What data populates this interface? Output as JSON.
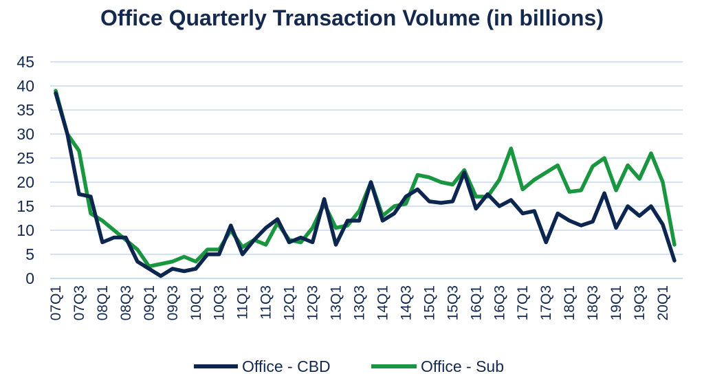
{
  "chart_data": {
    "type": "line",
    "title": "Office Quarterly Transaction Volume (in billions)",
    "xlabel": "",
    "ylabel": "",
    "ylim": [
      0,
      45
    ],
    "yticks": [
      0,
      5,
      10,
      15,
      20,
      25,
      30,
      35,
      40,
      45
    ],
    "grid": true,
    "legend_position": "bottom",
    "x": [
      "07Q1",
      "07Q2",
      "07Q3",
      "07Q4",
      "08Q1",
      "08Q2",
      "08Q3",
      "08Q4",
      "09Q1",
      "09Q2",
      "09Q3",
      "09Q4",
      "10Q1",
      "10Q2",
      "10Q3",
      "10Q4",
      "11Q1",
      "11Q2",
      "11Q3",
      "11Q4",
      "12Q1",
      "12Q2",
      "12Q3",
      "12Q4",
      "13Q1",
      "13Q2",
      "13Q3",
      "13Q4",
      "14Q1",
      "14Q2",
      "14Q3",
      "14Q4",
      "15Q1",
      "15Q2",
      "15Q3",
      "15Q4",
      "16Q1",
      "16Q2",
      "16Q3",
      "16Q4",
      "17Q1",
      "17Q2",
      "17Q3",
      "17Q4",
      "18Q1",
      "18Q2",
      "18Q3",
      "18Q4",
      "19Q1",
      "19Q2",
      "19Q3",
      "19Q4",
      "20Q1",
      "20Q2"
    ],
    "x_tick_labels": [
      "07Q1",
      "07Q3",
      "08Q1",
      "08Q3",
      "09Q1",
      "09Q3",
      "10Q1",
      "10Q3",
      "11Q1",
      "11Q3",
      "12Q1",
      "12Q3",
      "13Q1",
      "13Q3",
      "14Q1",
      "14Q3",
      "15Q1",
      "15Q3",
      "16Q1",
      "16Q3",
      "17Q1",
      "17Q3",
      "18Q1",
      "18Q3",
      "19Q1",
      "19Q3",
      "20Q1"
    ],
    "series": [
      {
        "name": "Office - CBD",
        "color": "#0d2650",
        "values": [
          38.5,
          30.0,
          17.5,
          17.0,
          7.5,
          8.5,
          8.5,
          3.5,
          2.0,
          0.5,
          2.0,
          1.5,
          2.0,
          5.0,
          5.0,
          11.0,
          5.0,
          8.0,
          10.5,
          12.3,
          7.5,
          8.5,
          7.5,
          16.5,
          7.0,
          12.0,
          12.0,
          20.0,
          12.0,
          13.5,
          17.0,
          18.5,
          16.0,
          15.7,
          16.0,
          22.0,
          14.5,
          17.5,
          15.0,
          16.3,
          13.5,
          14.0,
          7.5,
          13.5,
          12.0,
          11.0,
          11.8,
          17.7,
          10.5,
          15.0,
          13.0,
          15.0,
          11.2,
          3.7
        ]
      },
      {
        "name": "Office - Sub",
        "color": "#1a9640",
        "values": [
          39.0,
          30.0,
          26.5,
          13.5,
          12.0,
          10.0,
          8.0,
          6.0,
          2.5,
          3.0,
          3.5,
          4.5,
          3.5,
          6.0,
          6.0,
          10.0,
          6.5,
          8.0,
          7.0,
          11.5,
          8.0,
          7.5,
          10.5,
          15.5,
          10.5,
          11.0,
          14.0,
          20.0,
          13.0,
          15.0,
          15.5,
          21.5,
          21.0,
          20.0,
          19.5,
          22.5,
          17.0,
          17.0,
          20.5,
          27.0,
          18.5,
          20.5,
          22.0,
          23.5,
          18.0,
          18.3,
          23.3,
          25.0,
          18.3,
          23.5,
          20.7,
          26.0,
          20.0,
          7.0
        ]
      }
    ]
  }
}
